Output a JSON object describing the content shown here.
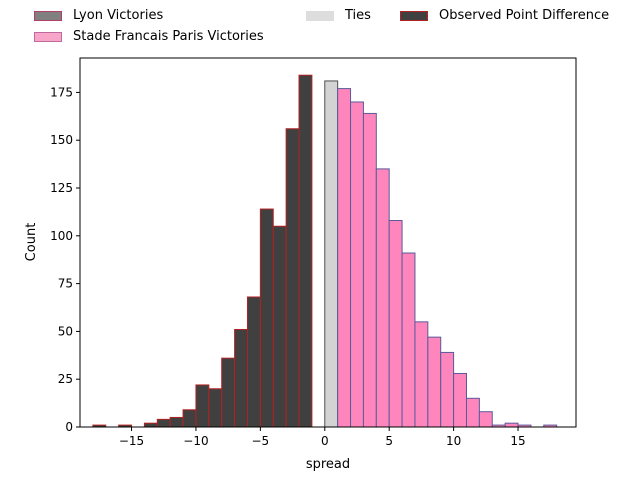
{
  "chart_data": {
    "type": "bar",
    "xlabel": "spread",
    "ylabel": "Count",
    "xlim": [
      -19,
      19.5
    ],
    "ylim": [
      0,
      193
    ],
    "xticks": [
      -15,
      -10,
      -5,
      0,
      5,
      10,
      15
    ],
    "xtick_labels": [
      "−15",
      "−10",
      "−5",
      "0",
      "5",
      "10",
      "15"
    ],
    "yticks": [
      0,
      25,
      50,
      75,
      100,
      125,
      150,
      175
    ],
    "bin_width": 1,
    "legend": {
      "placement": "top, above plot",
      "entries": [
        {
          "label": "Lyon Victories",
          "color": "#808080",
          "edge": "#b0406a"
        },
        {
          "label": "Stade Francais Paris Victories",
          "color": "#f7a5c8",
          "edge": "#c069a0"
        },
        {
          "label": "Ties",
          "color": "#dddddd",
          "edge": "#dddddd"
        },
        {
          "label": "Observed Point Difference",
          "color": "#404040",
          "edge": "#b22222"
        }
      ]
    },
    "series": [
      {
        "name": "Lyon Victories",
        "color": "#404040",
        "edge": "#b22222",
        "x": [
          -17.5,
          -15.5,
          -13.5,
          -12.5,
          -11.5,
          -10.5,
          -9.5,
          -8.5,
          -7.5,
          -6.5,
          -5.5,
          -4.5,
          -3.5,
          -2.5,
          -1.5,
          -0.5
        ],
        "values": [
          1,
          1,
          2,
          4,
          5,
          9,
          22,
          20,
          36,
          51,
          68,
          114,
          105,
          156,
          184,
          0
        ]
      },
      {
        "name": "Ties",
        "color": "#d3d3d3",
        "edge": "#505050",
        "x": [
          0.5
        ],
        "values": [
          181
        ]
      },
      {
        "name": "Stade Francais Paris Victories",
        "color": "#ff86bd",
        "edge": "#5a5a9a",
        "x": [
          1.5,
          2.5,
          3.5,
          4.5,
          5.5,
          6.5,
          7.5,
          8.5,
          9.5,
          10.5,
          11.5,
          12.5,
          13.5,
          14.5,
          15.5,
          16.5,
          17.5
        ],
        "values": [
          177,
          170,
          164,
          135,
          108,
          91,
          55,
          47,
          39,
          28,
          15,
          8,
          1,
          2,
          1,
          0,
          1
        ]
      }
    ]
  }
}
